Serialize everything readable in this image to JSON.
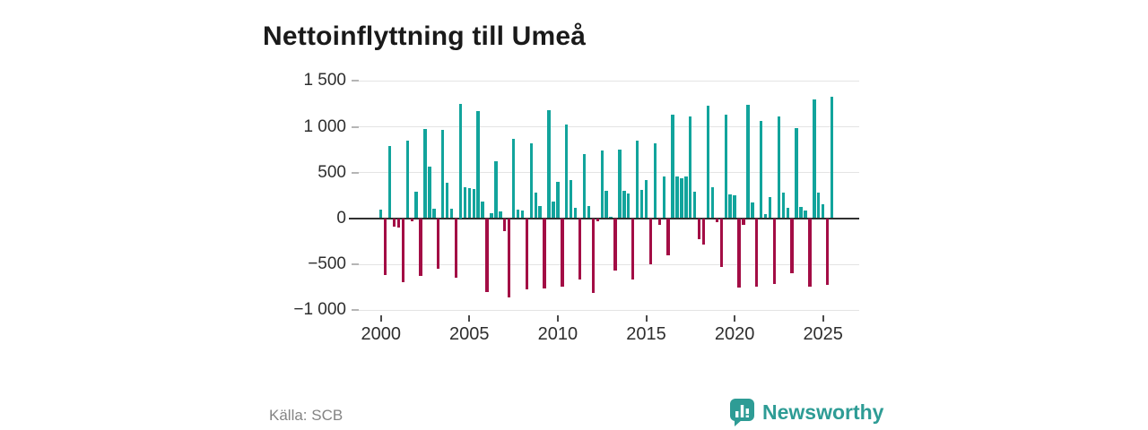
{
  "title": "Nettoinflyttning till Umeå",
  "source": "Källa: SCB",
  "brand": {
    "name": "Newsworthy",
    "icon": "bar-chart-speech-bubble-icon",
    "color": "#2e9c95"
  },
  "colors": {
    "positive": "#12a49c",
    "negative": "#a30d45",
    "gridline": "#e4e4e4",
    "zero_line": "#303030",
    "axis_text": "#2e2e2e",
    "title_text": "#1a1a1a",
    "source_text": "#848484"
  },
  "chart_data": {
    "type": "bar",
    "title": "Nettoinflyttning till Umeå",
    "xlabel": "",
    "ylabel": "",
    "frequency": "quarterly",
    "start_period": "2000Q1",
    "end_period": "2025Q3",
    "ylim": [
      -1000,
      1500
    ],
    "grid": "horizontal",
    "legend": "none",
    "y_ticks": [
      {
        "value": 1500,
        "label": "1 500"
      },
      {
        "value": 1000,
        "label": "1 000"
      },
      {
        "value": 500,
        "label": "500"
      },
      {
        "value": 0,
        "label": "0"
      },
      {
        "value": -500,
        "label": "−500"
      },
      {
        "value": -1000,
        "label": "−1 000"
      }
    ],
    "x_ticks": [
      {
        "year": 2000,
        "label": "2000"
      },
      {
        "year": 2005,
        "label": "2005"
      },
      {
        "year": 2010,
        "label": "2010"
      },
      {
        "year": 2015,
        "label": "2015"
      },
      {
        "year": 2020,
        "label": "2020"
      },
      {
        "year": 2025,
        "label": "2025"
      }
    ],
    "values": [
      90,
      -620,
      790,
      -90,
      -100,
      -695,
      840,
      -35,
      285,
      -630,
      970,
      565,
      105,
      -550,
      960,
      385,
      100,
      -645,
      1250,
      340,
      330,
      320,
      1170,
      180,
      -805,
      55,
      620,
      75,
      -145,
      -860,
      865,
      90,
      80,
      -780,
      815,
      280,
      130,
      -765,
      1175,
      185,
      400,
      -745,
      1020,
      415,
      110,
      -665,
      695,
      130,
      -820,
      -30,
      740,
      295,
      15,
      -575,
      750,
      295,
      270,
      -665,
      840,
      310,
      415,
      -505,
      815,
      -70,
      450,
      -405,
      1130,
      450,
      430,
      450,
      1110,
      285,
      -225,
      -290,
      1230,
      335,
      -45,
      -535,
      1130,
      260,
      250,
      -760,
      -75,
      1240,
      170,
      -745,
      1060,
      40,
      230,
      -715,
      1110,
      280,
      115,
      -600,
      985,
      120,
      85,
      -745,
      1290,
      275,
      155,
      -730,
      1320
    ]
  }
}
